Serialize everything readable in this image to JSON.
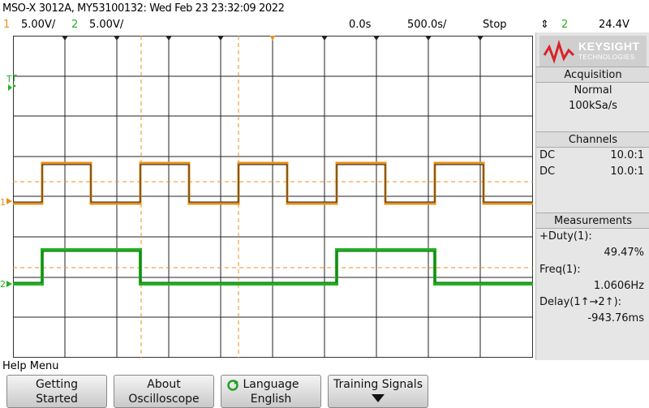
{
  "header": {
    "title": "MSO-X 3012A, MY53100132: Wed Feb 23 23:32:09 2022"
  },
  "status": {
    "ch1_num": "1",
    "ch1_scale": "5.00V/",
    "ch2_num": "2",
    "ch2_scale": "5.00V/",
    "time_delay": "0.0s",
    "time_scale": "500.0s/",
    "run_state": "Stop",
    "trigger_icon": "⇕",
    "trigger_channel": "2",
    "trigger_level": "24.4V"
  },
  "colors": {
    "ch1": "#e8901a",
    "ch2": "#22b022",
    "logo": "#d8232a"
  },
  "brand": {
    "name": "KEYSIGHT",
    "sub": "TECHNOLOGIES"
  },
  "acquisition": {
    "header": "Acquisition",
    "mode": "Normal",
    "rate": "100kSa/s"
  },
  "channels": {
    "header": "Channels",
    "rows": [
      {
        "coupling": "DC",
        "probe": "10.0:1"
      },
      {
        "coupling": "DC",
        "probe": "10.0:1"
      }
    ]
  },
  "measurements": {
    "header": "Measurements",
    "items": [
      {
        "label": "+Duty(1):",
        "value": "49.47%"
      },
      {
        "label": "Freq(1):",
        "value": "1.0606Hz"
      },
      {
        "label": "Delay(1↑→2↑):",
        "value": "-943.76ms"
      }
    ]
  },
  "markers": {
    "trigger": "T",
    "ch1": "1",
    "ch2": "2"
  },
  "help_menu": "Help Menu",
  "softkeys": [
    {
      "line1": "Getting",
      "line2": "Started"
    },
    {
      "line1": "About",
      "line2": "Oscilloscope"
    },
    {
      "line1": "Language",
      "line2": "English"
    },
    {
      "line1": "Training Signals",
      "line2": ""
    }
  ]
}
